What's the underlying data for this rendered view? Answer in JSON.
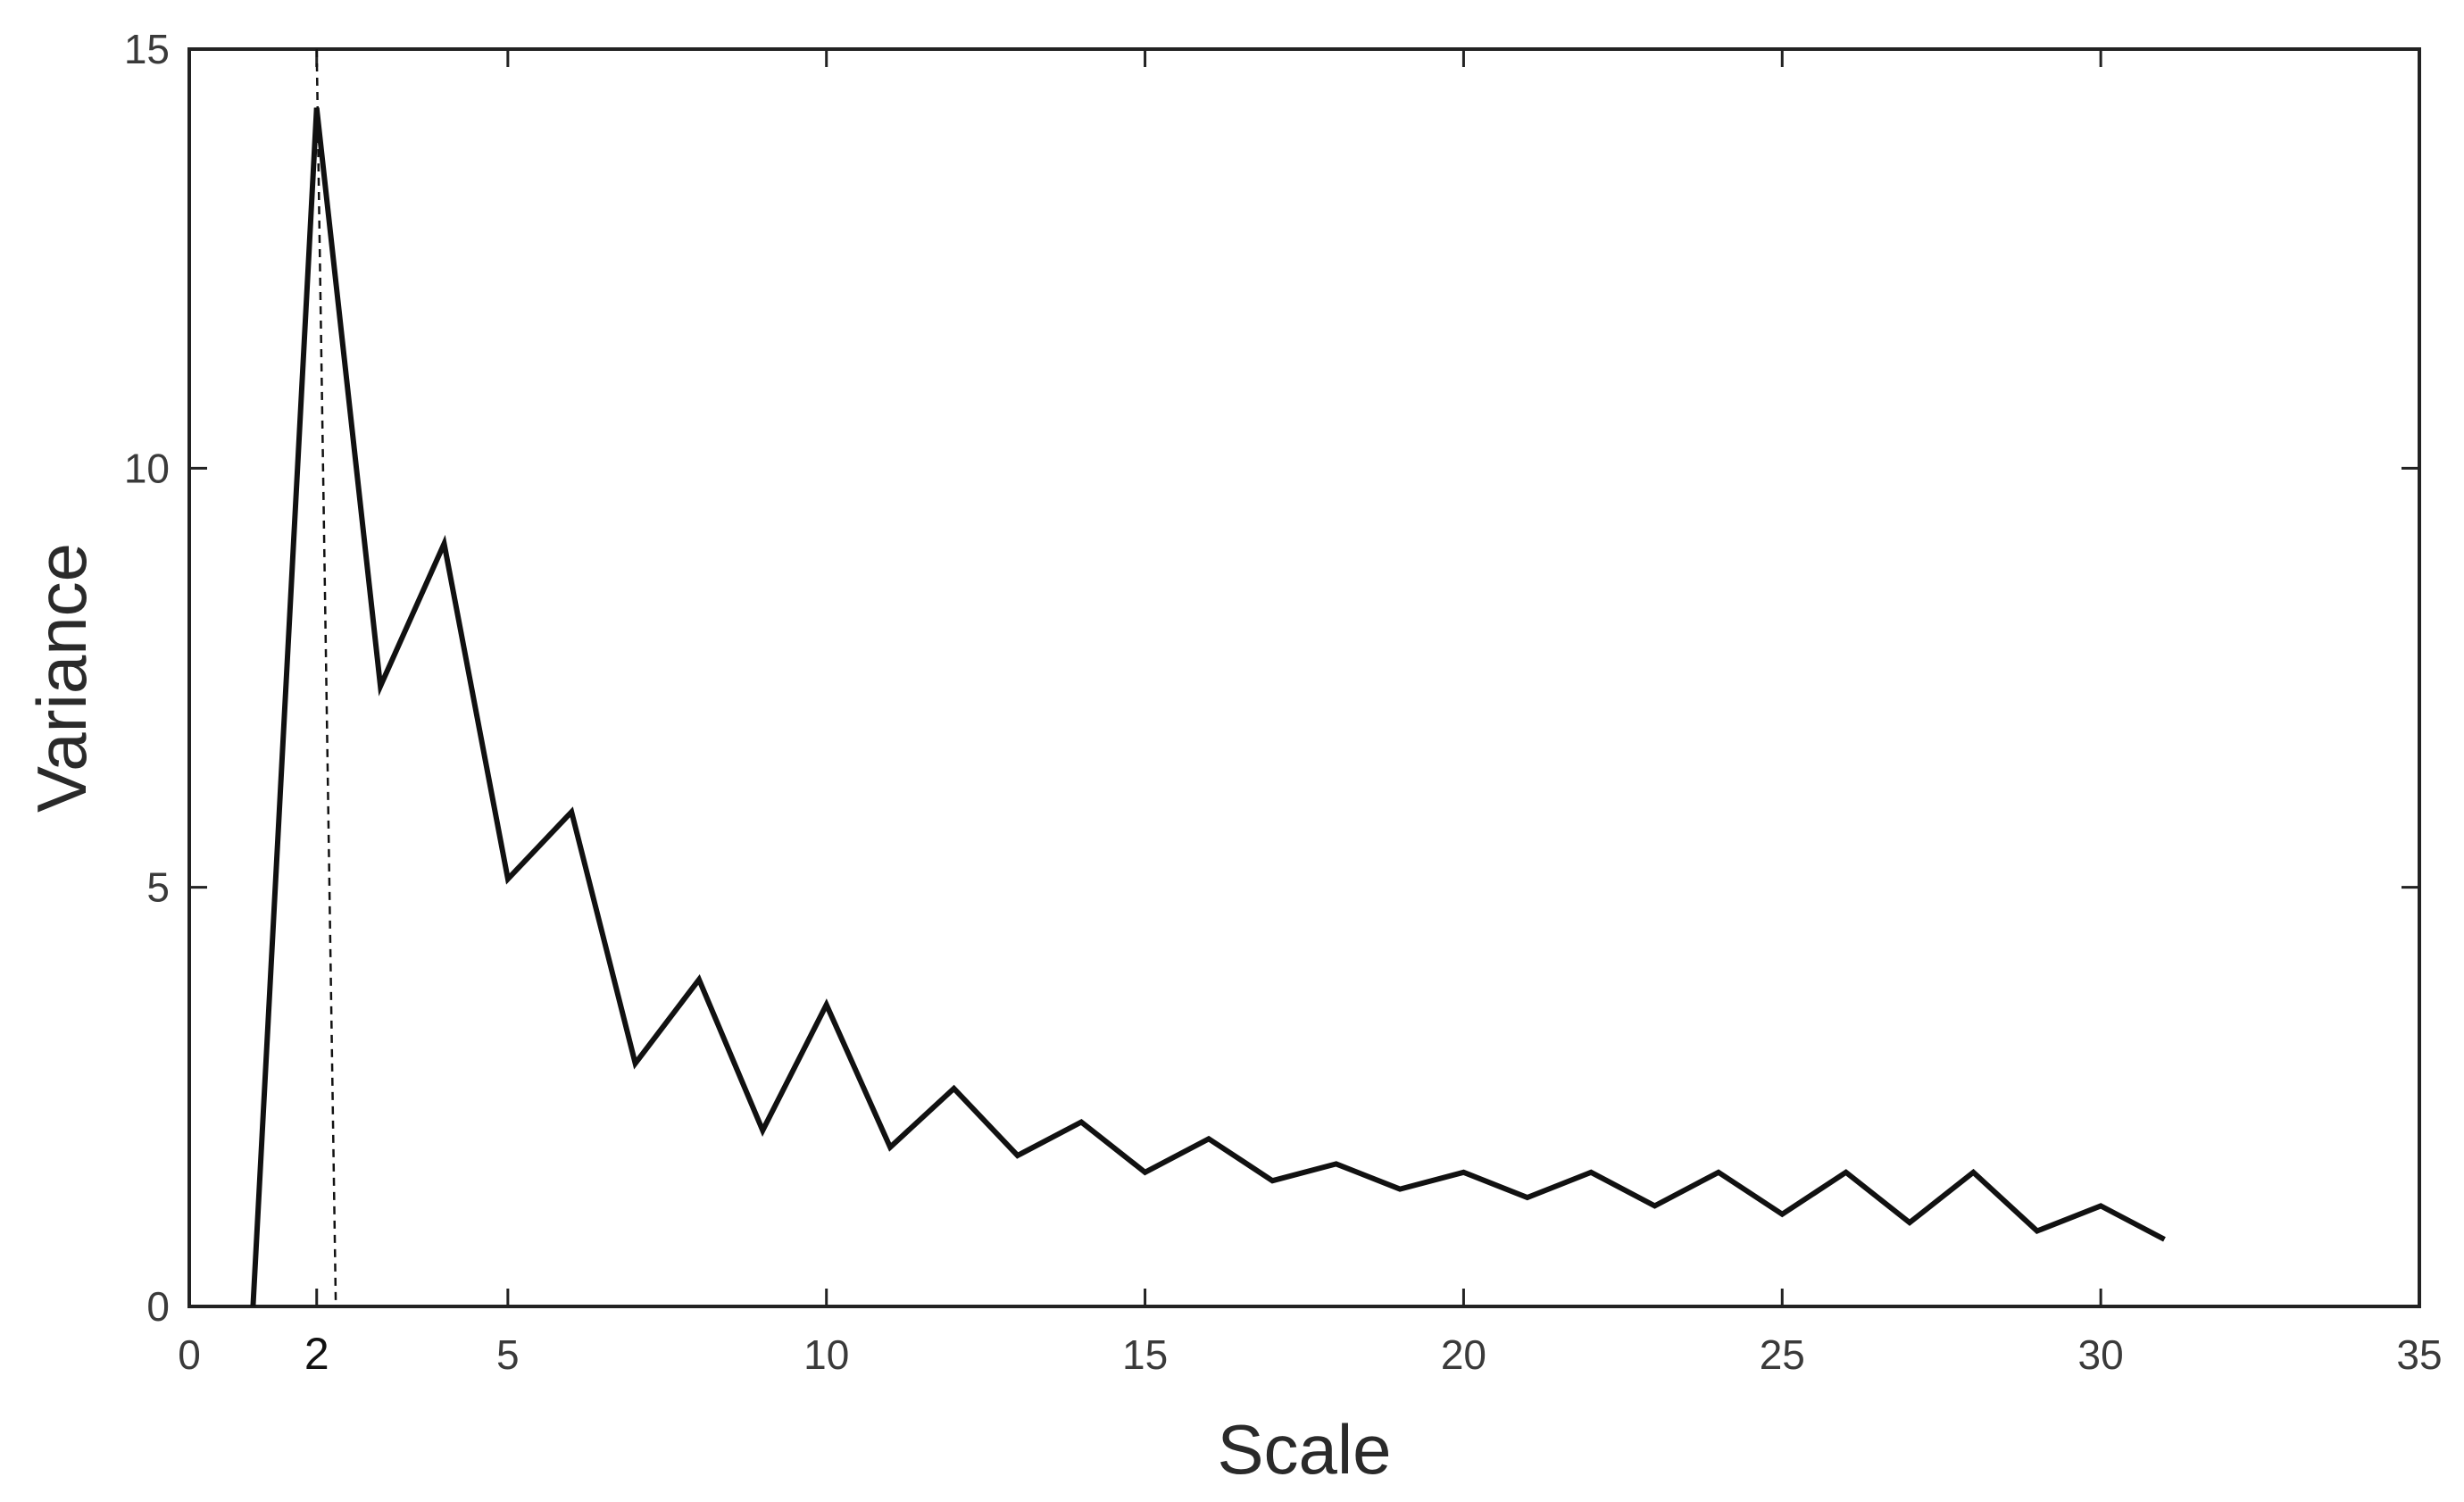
{
  "chart_data": {
    "type": "line",
    "title": "",
    "xlabel": "Scale",
    "ylabel": "Variance",
    "xlim": [
      0,
      35
    ],
    "ylim": [
      0,
      15
    ],
    "xticks": [
      0,
      2,
      5,
      10,
      15,
      20,
      25,
      30,
      35
    ],
    "xtick_labels": [
      "0",
      "2",
      "5",
      "10",
      "15",
      "20",
      "25",
      "30",
      "35"
    ],
    "yticks": [
      0,
      5,
      10,
      15
    ],
    "ytick_labels": [
      "0",
      "5",
      "10",
      "15"
    ],
    "grid": false,
    "legend": "none",
    "line_color": "#111111",
    "series": [
      {
        "x": [
          1,
          2,
          3,
          4,
          5,
          6,
          7,
          8,
          9,
          10,
          11,
          12,
          13,
          14,
          15,
          16,
          17,
          18,
          19,
          20,
          21,
          22,
          23,
          24,
          25,
          26,
          27,
          28,
          29,
          30,
          31
        ],
        "values": [
          0,
          14.3,
          7.4,
          9.1,
          5.1,
          5.9,
          2.9,
          3.9,
          2.1,
          3.6,
          1.9,
          2.6,
          1.8,
          2.2,
          1.6,
          2.0,
          1.5,
          1.7,
          1.4,
          1.6,
          1.3,
          1.6,
          1.2,
          1.6,
          1.1,
          1.6,
          1.0,
          1.6,
          0.9,
          1.2,
          0.8
        ]
      }
    ],
    "annotations": [
      {
        "type": "dashed-vertical-line",
        "x_top": 2.0,
        "x_bottom": 2.3,
        "y_top": 15,
        "y_bottom": 0
      }
    ]
  }
}
